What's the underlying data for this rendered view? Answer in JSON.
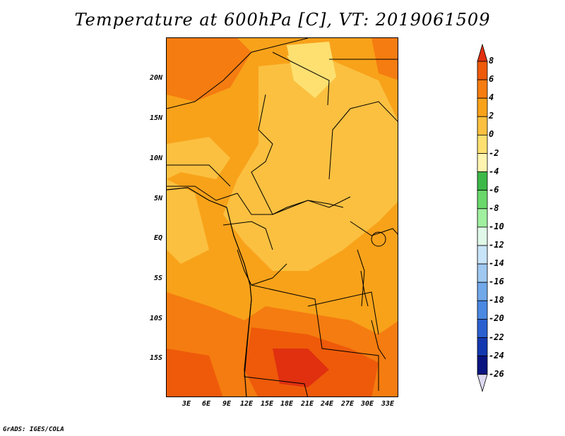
{
  "title": "Temperature at 600hPa [C], VT: 2019061509",
  "credit": "GrADS: IGES/COLA",
  "map": {
    "lat_labels": [
      "20N",
      "15N",
      "10N",
      "5N",
      "EQ",
      "5S",
      "10S",
      "15S"
    ],
    "lon_labels": [
      "3E",
      "6E",
      "9E",
      "12E",
      "15E",
      "18E",
      "21E",
      "24E",
      "27E",
      "30E",
      "33E"
    ],
    "region": "Central Africa",
    "field": "temperature at 600hPa"
  },
  "colorbar": {
    "labels": [
      "8",
      "6",
      "4",
      "2",
      "0",
      "-2",
      "-4",
      "-6",
      "-8",
      "-10",
      "-12",
      "-14",
      "-16",
      "-18",
      "-20",
      "-22",
      "-24",
      "-26"
    ],
    "colors": [
      "#e03010",
      "#ee5a0a",
      "#f57c10",
      "#f8a21a",
      "#fbc040",
      "#fde070",
      "#fff5b0",
      "#3cb848",
      "#6ad86a",
      "#a0f0a0",
      "#e0f8e8",
      "#c8e4f8",
      "#a0c8f0",
      "#70a8ea",
      "#4a88e2",
      "#2a60d0",
      "#1438b0",
      "#0a1480",
      "#dcd8f0"
    ]
  }
}
